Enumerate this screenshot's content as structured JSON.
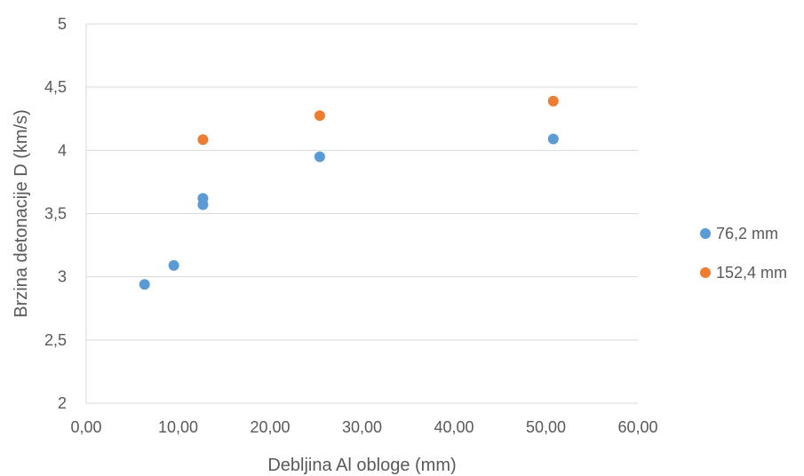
{
  "chart_data": {
    "type": "scatter",
    "title": "",
    "xlabel": "Debljina Al obloge (mm)",
    "ylabel": "Brzina detonacije D (km/s)",
    "xlim": [
      0,
      60
    ],
    "ylim": [
      2,
      5
    ],
    "x_ticks": [
      "0,00",
      "10,00",
      "20,00",
      "30,00",
      "40,00",
      "50,00",
      "60,00"
    ],
    "y_ticks": [
      "2",
      "2,5",
      "3",
      "3,5",
      "4",
      "4,5",
      "5"
    ],
    "grid": "horizontal",
    "legend_position": "right",
    "series": [
      {
        "name": "76,2 mm",
        "color": "#5B9BD5",
        "points": [
          {
            "x": 6.35,
            "y": 2.94
          },
          {
            "x": 9.53,
            "y": 3.09
          },
          {
            "x": 12.7,
            "y": 3.57
          },
          {
            "x": 12.7,
            "y": 3.62
          },
          {
            "x": 25.4,
            "y": 3.95
          },
          {
            "x": 50.8,
            "y": 4.09
          }
        ]
      },
      {
        "name": "152,4 mm",
        "color": "#ED7D31",
        "points": [
          {
            "x": 12.7,
            "y": 4.085
          },
          {
            "x": 25.4,
            "y": 4.275
          },
          {
            "x": 50.8,
            "y": 4.39
          }
        ]
      }
    ]
  }
}
